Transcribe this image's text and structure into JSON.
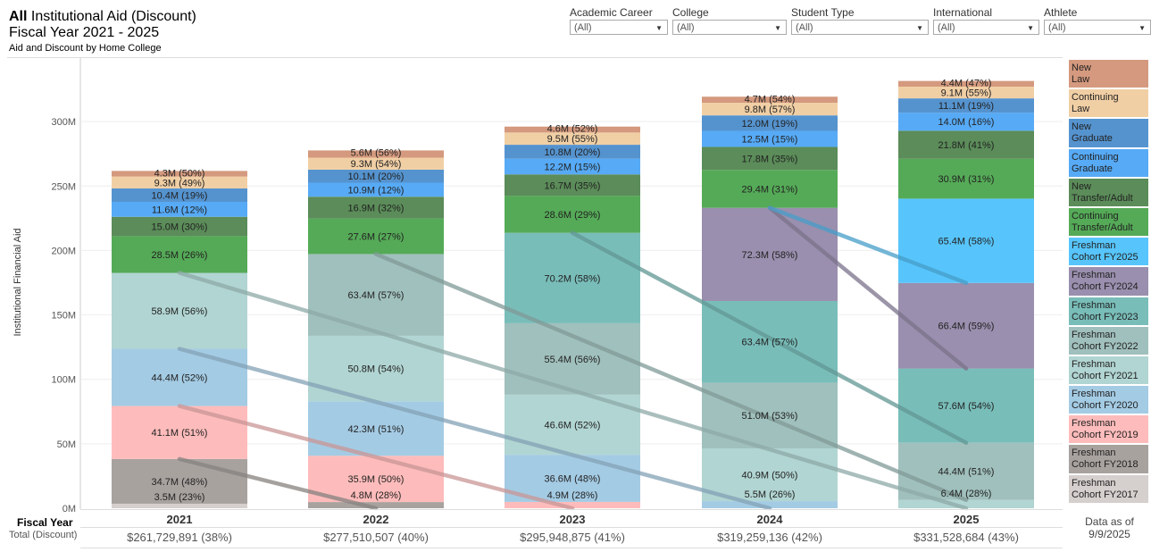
{
  "header": {
    "title_bold": "All",
    "title_rest": " Institutional Aid (Discount)",
    "subtitle": "Fiscal Year 2021 - 2025",
    "caption": "Aid and Discount by Home College"
  },
  "filters": [
    {
      "label": "Academic Career",
      "value": "(All)"
    },
    {
      "label": "College",
      "value": "(All)"
    },
    {
      "label": "Student Type",
      "value": "(All)"
    },
    {
      "label": "International",
      "value": "(All)"
    },
    {
      "label": "Athlete",
      "value": "(All)"
    }
  ],
  "footer": {
    "fiscal_year_label": "Fiscal Year",
    "total_label": "Total (Discount)",
    "totals": [
      "$261,729,891 (38%)",
      "$277,510,507 (40%)",
      "$295,948,875 (41%)",
      "$319,259,136 (42%)",
      "$331,528,684 (43%)"
    ],
    "data_as_of": "Data as of",
    "data_date": "9/9/2025"
  },
  "chart_data": {
    "type": "bar",
    "stacked": true,
    "categories": [
      "2021",
      "2022",
      "2023",
      "2024",
      "2025"
    ],
    "ylabel": "Institutional Financial Aid",
    "ylim": [
      0,
      345
    ],
    "yticks": [
      "0M",
      "50M",
      "100M",
      "150M",
      "200M",
      "250M",
      "300M"
    ],
    "ytick_values": [
      0,
      50,
      100,
      150,
      200,
      250,
      300
    ],
    "grid": true,
    "legend_position": "right",
    "series": [
      {
        "name": "Freshman Cohort FY2017",
        "color": "#d5cfcd",
        "values": [
          3.5,
          null,
          null,
          null,
          null
        ],
        "pct": [
          23,
          null,
          null,
          null,
          null
        ]
      },
      {
        "name": "Freshman Cohort FY2018",
        "color": "#a8a29f",
        "values": [
          34.7,
          4.8,
          null,
          null,
          null
        ],
        "pct": [
          48,
          28,
          null,
          null,
          null
        ]
      },
      {
        "name": "Freshman Cohort FY2019",
        "color": "#fdbcbb",
        "values": [
          41.1,
          35.9,
          4.9,
          null,
          null
        ],
        "pct": [
          51,
          50,
          28,
          null,
          null
        ]
      },
      {
        "name": "Freshman Cohort FY2020",
        "color": "#a4cbe4",
        "values": [
          44.4,
          42.3,
          36.6,
          5.5,
          null
        ],
        "pct": [
          52,
          51,
          48,
          26,
          null
        ]
      },
      {
        "name": "Freshman Cohort FY2021",
        "color": "#b1d5d2",
        "values": [
          58.9,
          50.8,
          46.6,
          40.9,
          6.4
        ],
        "pct": [
          56,
          54,
          52,
          50,
          28
        ]
      },
      {
        "name": "Freshman Cohort FY2022",
        "color": "#a0c0bd",
        "values": [
          null,
          63.4,
          55.4,
          51.0,
          44.4
        ],
        "pct": [
          null,
          57,
          56,
          53,
          51
        ]
      },
      {
        "name": "Freshman Cohort FY2023",
        "color": "#79bdb9",
        "values": [
          null,
          null,
          70.2,
          63.4,
          57.6
        ],
        "pct": [
          null,
          null,
          58,
          57,
          54
        ]
      },
      {
        "name": "Freshman Cohort FY2024",
        "color": "#9a8fae",
        "values": [
          null,
          null,
          null,
          72.3,
          66.4
        ],
        "pct": [
          null,
          null,
          null,
          58,
          59
        ]
      },
      {
        "name": "Freshman Cohort FY2025",
        "color": "#57c5fb",
        "values": [
          null,
          null,
          null,
          null,
          65.4
        ],
        "pct": [
          null,
          null,
          null,
          null,
          58
        ]
      },
      {
        "name": "Continuing Transfer/Adult",
        "color": "#55aa57",
        "values": [
          28.5,
          27.6,
          28.6,
          29.4,
          30.9
        ],
        "pct": [
          26,
          27,
          29,
          31,
          31
        ]
      },
      {
        "name": "New Transfer/Adult",
        "color": "#5b8c59",
        "values": [
          15.0,
          16.9,
          16.7,
          17.8,
          21.8
        ],
        "pct": [
          30,
          32,
          35,
          35,
          41
        ]
      },
      {
        "name": "Continuing Graduate",
        "color": "#57aaf5",
        "values": [
          11.6,
          10.9,
          12.2,
          12.5,
          14.0
        ],
        "pct": [
          12,
          12,
          15,
          15,
          16
        ]
      },
      {
        "name": "New Graduate",
        "color": "#5593cf",
        "values": [
          10.4,
          10.1,
          10.8,
          12.0,
          11.1
        ],
        "pct": [
          19,
          20,
          20,
          19,
          19
        ]
      },
      {
        "name": "Continuing Law",
        "color": "#f1cfa5",
        "values": [
          9.3,
          9.3,
          9.5,
          9.8,
          9.1
        ],
        "pct": [
          49,
          54,
          55,
          57,
          55
        ]
      },
      {
        "name": "New Law",
        "color": "#d4997e",
        "values": [
          4.3,
          5.6,
          4.6,
          4.7,
          4.4
        ],
        "pct": [
          50,
          56,
          52,
          54,
          47
        ]
      }
    ],
    "legend": [
      {
        "line1": "New",
        "line2": "Law",
        "color": "#d4997e"
      },
      {
        "line1": "Continuing",
        "line2": "Law",
        "color": "#f1cfa5"
      },
      {
        "line1": "New",
        "line2": "Graduate",
        "color": "#5593cf"
      },
      {
        "line1": "Continuing",
        "line2": "Graduate",
        "color": "#57aaf5"
      },
      {
        "line1": "New",
        "line2": "Transfer/Adult",
        "color": "#5b8c59"
      },
      {
        "line1": "Continuing",
        "line2": "Transfer/Adult",
        "color": "#55aa57"
      },
      {
        "line1": "Freshman",
        "line2": "Cohort FY2025",
        "color": "#57c5fb"
      },
      {
        "line1": "Freshman",
        "line2": "Cohort FY2024",
        "color": "#9a8fae"
      },
      {
        "line1": "Freshman",
        "line2": "Cohort FY2023",
        "color": "#79bdb9"
      },
      {
        "line1": "Freshman",
        "line2": "Cohort FY2022",
        "color": "#a0c0bd"
      },
      {
        "line1": "Freshman",
        "line2": "Cohort FY2021",
        "color": "#b1d5d2"
      },
      {
        "line1": "Freshman",
        "line2": "Cohort FY2020",
        "color": "#a4cbe4"
      },
      {
        "line1": "Freshman",
        "line2": "Cohort FY2019",
        "color": "#fdbcbb"
      },
      {
        "line1": "Freshman",
        "line2": "Cohort FY2018",
        "color": "#a8a29f"
      },
      {
        "line1": "Freshman",
        "line2": "Cohort FY2017",
        "color": "#d5cfcd"
      }
    ]
  }
}
